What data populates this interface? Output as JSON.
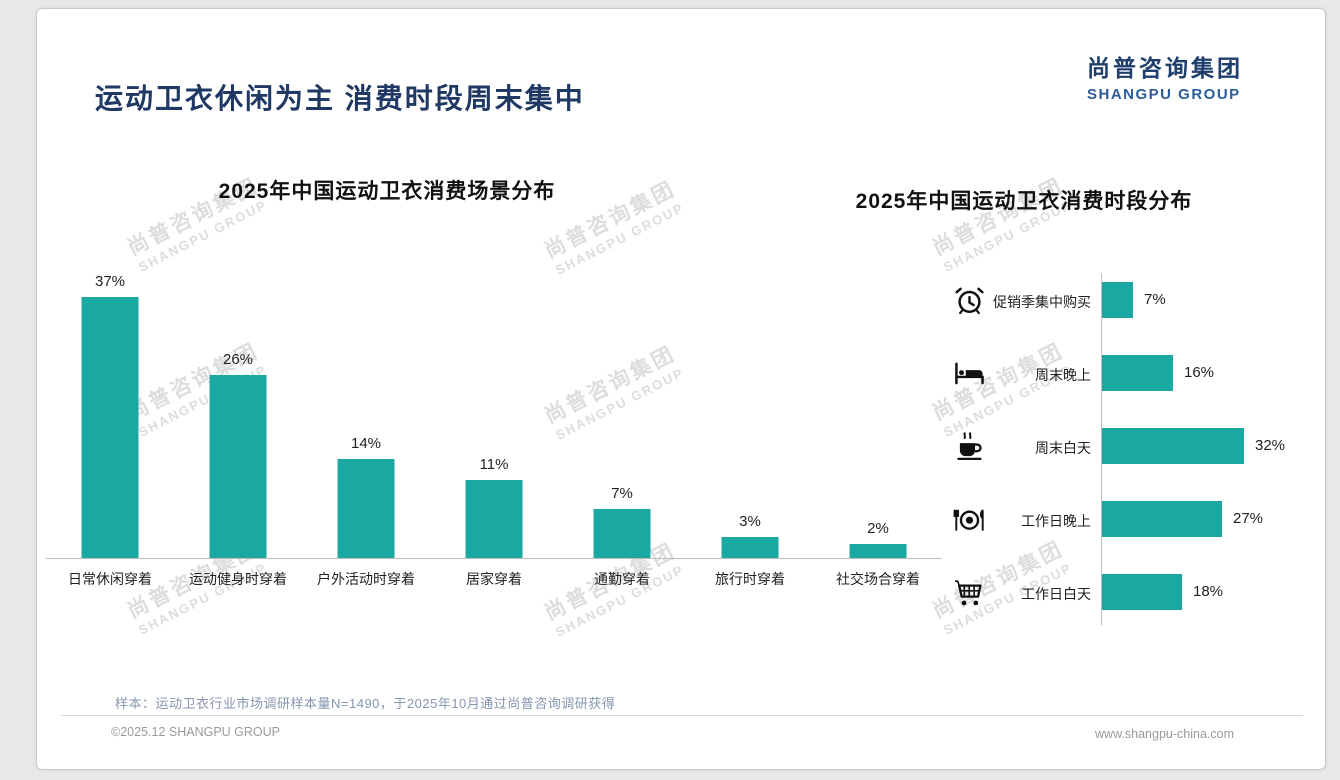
{
  "page": {
    "title": "运动卫衣休闲为主 消费时段周末集中",
    "logo": {
      "cn": "尚普咨询集团",
      "en": "SHANGPU GROUP"
    },
    "watermark": {
      "cn": "尚普咨询集团",
      "en": "SHANGPU GROUP"
    },
    "footer": {
      "sample_note": "样本：运动卫衣行业市场调研样本量N=1490，于2025年10月通过尚普咨询调研获得",
      "copyright": "©2025.12 SHANGPU GROUP",
      "website": "www.shangpu-china.com"
    },
    "colors": {
      "accent": "#1BA8A2",
      "title_navy": "#1F3864",
      "logo_navy": "#1E3E6B"
    }
  },
  "chart_data": [
    {
      "type": "bar",
      "orientation": "vertical",
      "title": "2025年中国运动卫衣消费场景分布",
      "categories": [
        "日常休闲穿着",
        "运动健身时穿着",
        "户外活动时穿着",
        "居家穿着",
        "通勤穿着",
        "旅行时穿着",
        "社交场合穿着"
      ],
      "values": [
        37,
        26,
        14,
        11,
        7,
        3,
        2
      ],
      "unit": "%",
      "ylim": [
        0,
        40
      ],
      "bar_color": "#1BA8A2",
      "grid": false,
      "data_labels": true
    },
    {
      "type": "bar",
      "orientation": "horizontal",
      "title": "2025年中国运动卫衣消费时段分布",
      "unit": "%",
      "xlim": [
        0,
        35
      ],
      "bar_color": "#1BA8A2",
      "grid": false,
      "data_labels": true,
      "rows": [
        {
          "icon": "alarm-clock-icon",
          "label": "促销季集中购买",
          "value": 7
        },
        {
          "icon": "bed-icon",
          "label": "周末晚上",
          "value": 16
        },
        {
          "icon": "coffee-icon",
          "label": "周末白天",
          "value": 32
        },
        {
          "icon": "dining-icon",
          "label": "工作日晚上",
          "value": 27
        },
        {
          "icon": "cart-icon",
          "label": "工作日白天",
          "value": 18
        }
      ]
    }
  ]
}
